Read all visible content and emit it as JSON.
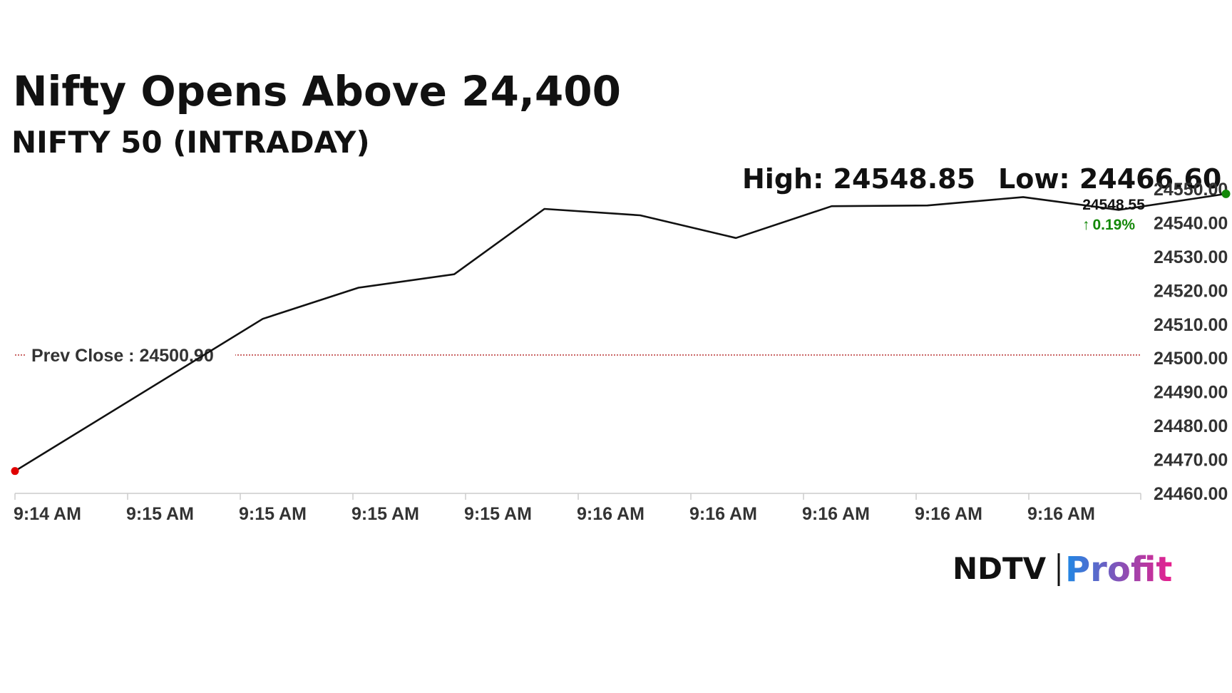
{
  "page_title": "Nifty Opens Above 24,400",
  "subtitle": "NIFTY 50 (INTRADAY)",
  "stats": {
    "high": "High: 24548.85",
    "low": "Low: 24466.60"
  },
  "last_value": {
    "price": "24548.55",
    "change": "0.19%",
    "arrow": "↑"
  },
  "brand": {
    "part1": "NDTV",
    "part2": "Profit"
  },
  "colors": {
    "line": "#111111",
    "prev_close_line": "#b22222",
    "start_dot": "#e00000",
    "end_dot": "#138808",
    "change_up": "#138808",
    "brand_blue": "#1e88e5",
    "brand_pink": "#e91e8c"
  },
  "chart_data": {
    "type": "line",
    "title": "Nifty Opens Above 24,400",
    "subtitle": "NIFTY 50 (INTRADAY)",
    "x_tick_labels": [
      "9:14 AM",
      "9:15 AM",
      "9:15 AM",
      "9:15 AM",
      "9:15 AM",
      "9:16 AM",
      "9:16 AM",
      "9:16 AM",
      "9:16 AM",
      "9:16 AM"
    ],
    "y_tick_labels": [
      "24550.00",
      "24540.00",
      "24530.00",
      "24520.00",
      "24510.00",
      "24500.00",
      "24490.00",
      "24480.00",
      "24470.00",
      "24460.00"
    ],
    "ylim": [
      24460,
      24550
    ],
    "series": [
      {
        "values": [
          24466.6,
          24511.6,
          24520.8,
          24524.8,
          24544.1,
          24542.2,
          24535.5,
          24544.9,
          24545.1,
          24547.6,
          24543.8,
          24548.55
        ]
      }
    ],
    "x_positions": [
      0,
      2.2,
      3.05,
      3.9,
      4.7,
      5.55,
      6.4,
      7.25,
      8.1,
      8.95,
      9.8,
      10.75
    ],
    "prev_close": {
      "label": "Prev Close : 24500.90",
      "value": 24500.9
    },
    "grid": false
  }
}
